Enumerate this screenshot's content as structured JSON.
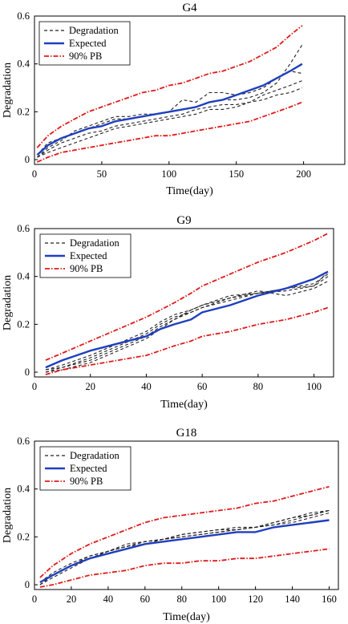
{
  "colors": {
    "degradation": "#222222",
    "expected": "#1f3fbf",
    "pb": "#e01a1a"
  },
  "chart_data": [
    {
      "type": "line",
      "title": "G4",
      "xlabel": "Time(day)",
      "ylabel": "Degradation",
      "xlim": [
        0,
        205
      ],
      "ylim": [
        -0.02,
        0.6
      ],
      "xticks": [
        "0",
        "50",
        "100",
        "150",
        "200"
      ],
      "yticks": [
        "0",
        "0.2",
        "0.4",
        "0.6"
      ],
      "legend": [
        "Degradation",
        "Expected",
        "90% PB"
      ],
      "legend_position": "top-left",
      "series": [
        {
          "name": "90% PB",
          "role": "pb",
          "x": [
            2,
            10,
            20,
            30,
            40,
            50,
            60,
            70,
            80,
            90,
            100,
            110,
            120,
            130,
            140,
            150,
            160,
            170,
            180,
            190,
            199
          ],
          "y": [
            0.05,
            0.1,
            0.14,
            0.17,
            0.2,
            0.22,
            0.24,
            0.26,
            0.28,
            0.29,
            0.31,
            0.32,
            0.34,
            0.36,
            0.37,
            0.39,
            0.41,
            0.44,
            0.47,
            0.52,
            0.56
          ]
        },
        {
          "name": "90% PB",
          "role": "pb",
          "x": [
            2,
            10,
            20,
            30,
            40,
            50,
            60,
            70,
            80,
            90,
            100,
            110,
            120,
            130,
            140,
            150,
            160,
            170,
            180,
            190,
            199
          ],
          "y": [
            -0.01,
            0.01,
            0.03,
            0.04,
            0.05,
            0.06,
            0.07,
            0.08,
            0.09,
            0.1,
            0.1,
            0.11,
            0.12,
            0.13,
            0.14,
            0.15,
            0.16,
            0.18,
            0.2,
            0.22,
            0.24
          ]
        },
        {
          "name": "Expected",
          "role": "expected",
          "x": [
            2,
            10,
            20,
            30,
            40,
            50,
            60,
            70,
            80,
            90,
            100,
            110,
            120,
            130,
            140,
            150,
            160,
            170,
            180,
            190,
            199
          ],
          "y": [
            0.02,
            0.06,
            0.09,
            0.11,
            0.13,
            0.14,
            0.16,
            0.17,
            0.18,
            0.19,
            0.2,
            0.21,
            0.22,
            0.24,
            0.25,
            0.27,
            0.29,
            0.31,
            0.34,
            0.37,
            0.4
          ]
        },
        {
          "name": "Degradation",
          "role": "degradation",
          "x": [
            2,
            10,
            20,
            30,
            40,
            50,
            60,
            70,
            80,
            90,
            100,
            110,
            120,
            130,
            140,
            150,
            160,
            170,
            180,
            190,
            199
          ],
          "y": [
            0.02,
            0.07,
            0.09,
            0.11,
            0.13,
            0.15,
            0.17,
            0.17,
            0.18,
            0.19,
            0.2,
            0.21,
            0.22,
            0.24,
            0.25,
            0.25,
            0.26,
            0.28,
            0.32,
            0.4,
            0.48
          ]
        },
        {
          "name": "Degradation",
          "role": "degradation",
          "x": [
            2,
            10,
            20,
            30,
            40,
            50,
            60,
            70,
            80,
            90,
            100,
            110,
            120,
            130,
            140,
            150,
            160,
            170,
            180,
            190,
            199
          ],
          "y": [
            0.01,
            0.05,
            0.08,
            0.12,
            0.14,
            0.16,
            0.18,
            0.18,
            0.19,
            0.19,
            0.2,
            0.25,
            0.24,
            0.28,
            0.28,
            0.27,
            0.28,
            0.3,
            0.34,
            0.37,
            0.36
          ]
        },
        {
          "name": "Degradation",
          "role": "degradation",
          "x": [
            2,
            10,
            20,
            30,
            40,
            50,
            60,
            70,
            80,
            90,
            100,
            110,
            120,
            130,
            140,
            150,
            160,
            170,
            180,
            190,
            199
          ],
          "y": [
            0.01,
            0.04,
            0.07,
            0.09,
            0.11,
            0.12,
            0.14,
            0.15,
            0.16,
            0.17,
            0.18,
            0.19,
            0.21,
            0.22,
            0.23,
            0.23,
            0.24,
            0.27,
            0.29,
            0.31,
            0.33
          ]
        },
        {
          "name": "Degradation",
          "role": "degradation",
          "x": [
            2,
            10,
            20,
            30,
            40,
            50,
            60,
            70,
            80,
            90,
            100,
            110,
            120,
            130,
            140,
            150,
            160,
            170,
            180,
            190,
            199
          ],
          "y": [
            0.01,
            0.03,
            0.05,
            0.07,
            0.09,
            0.11,
            0.13,
            0.14,
            0.15,
            0.16,
            0.17,
            0.18,
            0.19,
            0.21,
            0.21,
            0.22,
            0.24,
            0.25,
            0.27,
            0.28,
            0.3
          ]
        }
      ]
    },
    {
      "type": "line",
      "title": "G9",
      "xlabel": "Time(day)",
      "ylabel": "Degradation",
      "xlim": [
        0,
        107
      ],
      "ylim": [
        -0.02,
        0.6
      ],
      "xticks": [
        "0",
        "20",
        "40",
        "60",
        "80",
        "100"
      ],
      "yticks": [
        "0",
        "0.2",
        "0.4",
        "0.6"
      ],
      "legend": [
        "Degradation",
        "Expected",
        "90% PB"
      ],
      "legend_position": "top-right",
      "series": [
        {
          "name": "90% PB",
          "role": "pb",
          "x": [
            4,
            10,
            20,
            30,
            40,
            45,
            50,
            56,
            60,
            70,
            80,
            90,
            100,
            105
          ],
          "y": [
            0.05,
            0.08,
            0.13,
            0.18,
            0.23,
            0.26,
            0.29,
            0.33,
            0.36,
            0.41,
            0.46,
            0.5,
            0.55,
            0.58
          ]
        },
        {
          "name": "90% PB",
          "role": "pb",
          "x": [
            4,
            10,
            20,
            30,
            40,
            45,
            50,
            56,
            60,
            70,
            80,
            90,
            100,
            105
          ],
          "y": [
            -0.01,
            0.01,
            0.03,
            0.05,
            0.07,
            0.09,
            0.11,
            0.13,
            0.15,
            0.17,
            0.2,
            0.22,
            0.25,
            0.27
          ]
        },
        {
          "name": "Expected",
          "role": "expected",
          "x": [
            4,
            10,
            20,
            30,
            40,
            45,
            50,
            56,
            60,
            70,
            80,
            90,
            100,
            105
          ],
          "y": [
            0.02,
            0.05,
            0.09,
            0.12,
            0.15,
            0.18,
            0.2,
            0.22,
            0.25,
            0.28,
            0.32,
            0.35,
            0.39,
            0.42
          ]
        },
        {
          "name": "Degradation",
          "role": "degradation",
          "x": [
            4,
            10,
            20,
            30,
            40,
            45,
            50,
            56,
            60,
            70,
            80,
            90,
            100,
            105
          ],
          "y": [
            0.01,
            0.03,
            0.07,
            0.12,
            0.17,
            0.21,
            0.24,
            0.26,
            0.28,
            0.31,
            0.33,
            0.35,
            0.37,
            0.41
          ]
        },
        {
          "name": "Degradation",
          "role": "degradation",
          "x": [
            4,
            10,
            20,
            30,
            40,
            45,
            50,
            56,
            60,
            70,
            80,
            90,
            100,
            105
          ],
          "y": [
            0.01,
            0.02,
            0.06,
            0.11,
            0.16,
            0.2,
            0.23,
            0.25,
            0.27,
            0.3,
            0.33,
            0.34,
            0.36,
            0.4
          ]
        },
        {
          "name": "Degradation",
          "role": "degradation",
          "x": [
            4,
            10,
            20,
            30,
            40,
            45,
            50,
            56,
            60,
            70,
            80,
            90,
            100,
            105
          ],
          "y": [
            0.0,
            0.02,
            0.05,
            0.1,
            0.15,
            0.19,
            0.22,
            0.25,
            0.27,
            0.31,
            0.34,
            0.32,
            0.35,
            0.38
          ]
        },
        {
          "name": "Degradation",
          "role": "degradation",
          "x": [
            4,
            10,
            20,
            30,
            40,
            45,
            50,
            56,
            60,
            70,
            80,
            90,
            100,
            105
          ],
          "y": [
            0.0,
            0.01,
            0.04,
            0.09,
            0.14,
            0.18,
            0.22,
            0.26,
            0.28,
            0.32,
            0.33,
            0.35,
            0.36,
            0.42
          ]
        }
      ]
    },
    {
      "type": "line",
      "title": "G18",
      "xlabel": "Time(day)",
      "ylabel": "Degradation",
      "xlim": [
        0,
        165
      ],
      "ylim": [
        -0.02,
        0.6
      ],
      "xticks": [
        "0",
        "20",
        "40",
        "60",
        "80",
        "100",
        "120",
        "140",
        "160"
      ],
      "yticks": [
        "0",
        "0.2",
        "0.4",
        "0.6"
      ],
      "legend": [
        "Degradation",
        "Expected",
        "90% PB"
      ],
      "legend_position": "top-left",
      "series": [
        {
          "name": "90% PB",
          "role": "pb",
          "x": [
            3,
            10,
            20,
            30,
            40,
            50,
            60,
            70,
            80,
            90,
            100,
            110,
            120,
            130,
            140,
            150,
            160
          ],
          "y": [
            0.03,
            0.08,
            0.13,
            0.17,
            0.2,
            0.23,
            0.26,
            0.28,
            0.29,
            0.3,
            0.31,
            0.32,
            0.34,
            0.35,
            0.37,
            0.39,
            0.41
          ]
        },
        {
          "name": "90% PB",
          "role": "pb",
          "x": [
            3,
            10,
            20,
            30,
            40,
            50,
            60,
            70,
            80,
            90,
            100,
            110,
            120,
            130,
            140,
            150,
            160
          ],
          "y": [
            -0.01,
            0.0,
            0.02,
            0.04,
            0.05,
            0.06,
            0.08,
            0.09,
            0.09,
            0.1,
            0.1,
            0.11,
            0.11,
            0.12,
            0.13,
            0.14,
            0.15
          ]
        },
        {
          "name": "Expected",
          "role": "expected",
          "x": [
            3,
            10,
            20,
            30,
            40,
            50,
            60,
            70,
            80,
            90,
            100,
            110,
            120,
            130,
            140,
            150,
            160
          ],
          "y": [
            0.01,
            0.04,
            0.08,
            0.11,
            0.13,
            0.15,
            0.17,
            0.18,
            0.19,
            0.2,
            0.21,
            0.22,
            0.22,
            0.24,
            0.25,
            0.26,
            0.27
          ]
        },
        {
          "name": "Degradation",
          "role": "degradation",
          "x": [
            3,
            10,
            20,
            30,
            40,
            50,
            60,
            70,
            80,
            90,
            100,
            110,
            120,
            130,
            140,
            150,
            160
          ],
          "y": [
            0.01,
            0.05,
            0.09,
            0.12,
            0.14,
            0.16,
            0.18,
            0.19,
            0.21,
            0.22,
            0.23,
            0.24,
            0.24,
            0.26,
            0.28,
            0.3,
            0.31
          ]
        },
        {
          "name": "Degradation",
          "role": "degradation",
          "x": [
            3,
            10,
            20,
            30,
            40,
            50,
            60,
            70,
            80,
            90,
            100,
            110,
            120,
            130,
            140,
            150,
            160
          ],
          "y": [
            0.01,
            0.04,
            0.08,
            0.12,
            0.14,
            0.17,
            0.18,
            0.19,
            0.2,
            0.21,
            0.22,
            0.23,
            0.24,
            0.25,
            0.27,
            0.29,
            0.31
          ]
        },
        {
          "name": "Degradation",
          "role": "degradation",
          "x": [
            3,
            10,
            20,
            30,
            40,
            50,
            60,
            70,
            80,
            90,
            100,
            110,
            120,
            130,
            140,
            150,
            160
          ],
          "y": [
            0.0,
            0.04,
            0.08,
            0.11,
            0.14,
            0.16,
            0.17,
            0.19,
            0.2,
            0.21,
            0.22,
            0.23,
            0.24,
            0.25,
            0.26,
            0.28,
            0.3
          ]
        },
        {
          "name": "Degradation",
          "role": "degradation",
          "x": [
            3,
            10,
            20,
            30,
            40,
            50,
            60,
            70,
            80,
            90,
            100,
            110,
            120,
            130,
            140,
            150,
            160
          ],
          "y": [
            0.0,
            0.03,
            0.07,
            0.11,
            0.14,
            0.16,
            0.18,
            0.19,
            0.21,
            0.22,
            0.23,
            0.23,
            0.24,
            0.26,
            0.28,
            0.29,
            0.31
          ]
        }
      ]
    }
  ]
}
